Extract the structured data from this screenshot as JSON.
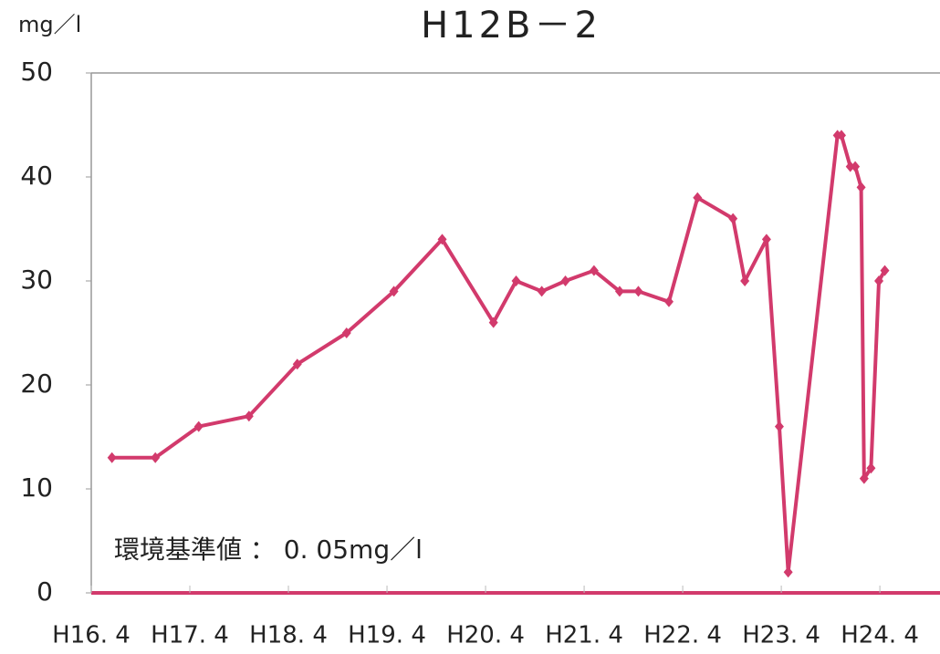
{
  "chart_data": {
    "type": "line",
    "title": "H12B－2",
    "y_label": "mg／l",
    "annotation": "環境基準値 ： 0. 05mg／l",
    "x": [
      16.46,
      16.9,
      17.34,
      17.85,
      18.34,
      18.84,
      19.32,
      19.81,
      20.33,
      20.56,
      20.82,
      21.06,
      21.35,
      21.61,
      21.8,
      22.11,
      22.4,
      22.76,
      22.88,
      23.1,
      23.23,
      23.32,
      23.82,
      23.86,
      23.95,
      24.0,
      24.06,
      24.09,
      24.16,
      24.24,
      24.3
    ],
    "series": [
      {
        "color": "#d23a6c",
        "values": [
          13,
          13,
          16,
          17,
          22,
          25,
          29,
          34,
          26,
          30,
          29,
          30,
          31,
          29,
          29,
          28,
          38,
          36,
          30,
          34,
          16,
          2,
          44,
          44,
          41,
          41,
          39,
          11,
          12,
          30,
          31
        ]
      }
    ],
    "xlim": [
      16.25,
      24.86
    ],
    "xticks": [
      {
        "value": 16.25,
        "label": "H16. 4"
      },
      {
        "value": 17.25,
        "label": "H17. 4"
      },
      {
        "value": 18.25,
        "label": "H18. 4"
      },
      {
        "value": 19.25,
        "label": "H19. 4"
      },
      {
        "value": 20.25,
        "label": "H20. 4"
      },
      {
        "value": 21.25,
        "label": "H21. 4"
      },
      {
        "value": 22.25,
        "label": "H22. 4"
      },
      {
        "value": 23.25,
        "label": "H23. 4"
      },
      {
        "value": 24.25,
        "label": "H24. 4"
      }
    ],
    "ylim": [
      0,
      50
    ],
    "yticks": [
      0,
      10,
      20,
      30,
      40,
      50
    ]
  }
}
